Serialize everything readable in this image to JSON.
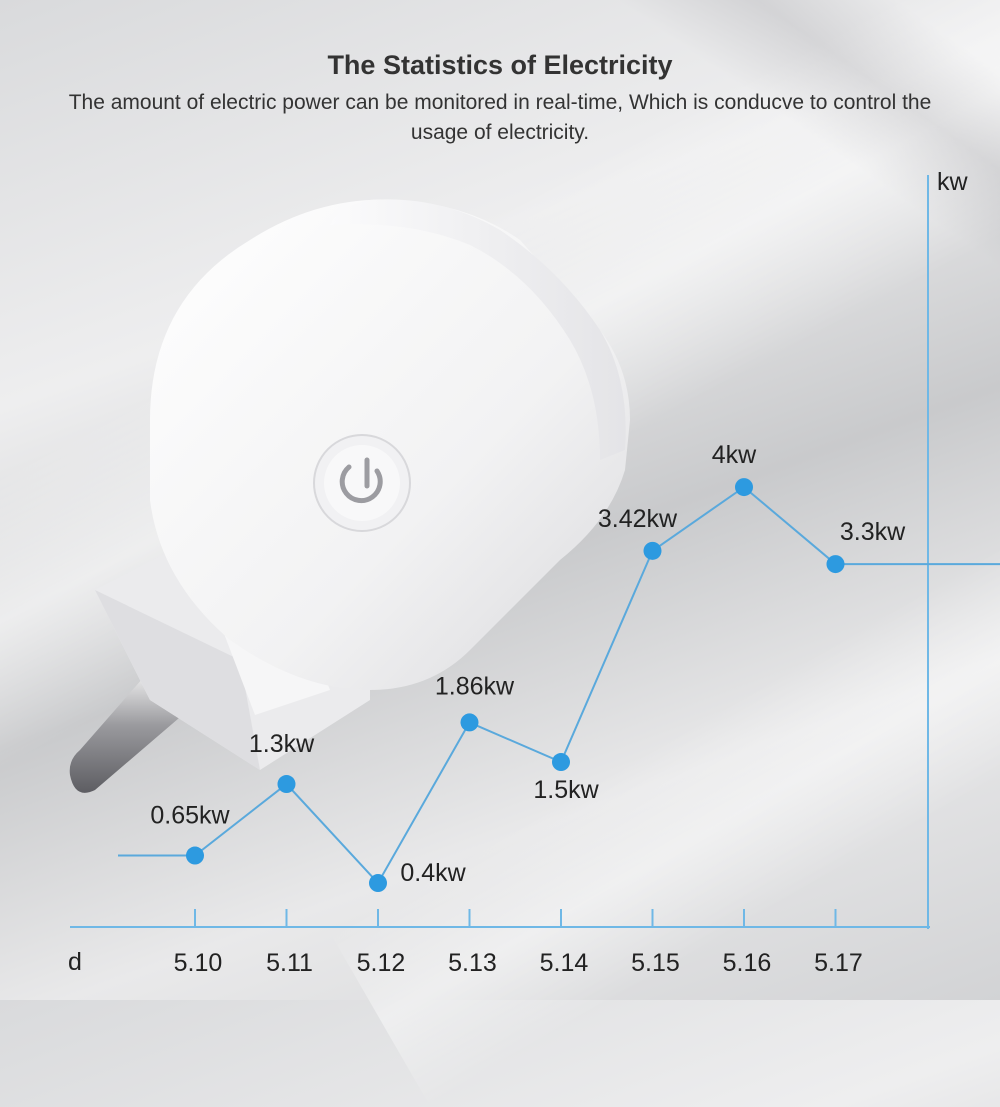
{
  "header": {
    "title": "The Statistics of Electricity",
    "subtitle": "The amount of electric power can be monitored in real-time, Which is conducve to control the usage of electricity."
  },
  "chart_data": {
    "type": "line",
    "xlabel": "d",
    "ylabel": "kw",
    "categories": [
      "5.10",
      "5.11",
      "5.12",
      "5.13",
      "5.14",
      "5.15",
      "5.16",
      "5.17"
    ],
    "values": [
      0.65,
      1.3,
      0.4,
      1.86,
      1.5,
      3.42,
      4,
      3.3
    ],
    "data_labels": [
      "0.65kw",
      "1.3kw",
      "0.4kw",
      "1.86kw",
      "1.5kw",
      "3.42kw",
      "4kw",
      "3.3kw"
    ],
    "ylim": [
      0,
      8
    ],
    "grid": false,
    "legend": "none",
    "colors": {
      "line": "#5aa9dc",
      "marker": "#2d9ae0",
      "axis": "#6fb8e6"
    }
  }
}
